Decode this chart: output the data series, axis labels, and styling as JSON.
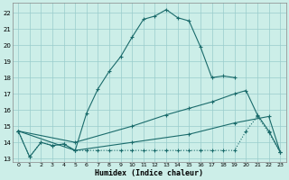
{
  "xlabel": "Humidex (Indice chaleur)",
  "bg_color": "#cceee8",
  "grid_color": "#99cccc",
  "line_color": "#1a6b6b",
  "xlim": [
    -0.5,
    23.5
  ],
  "ylim": [
    12.8,
    22.6
  ],
  "yticks": [
    13,
    14,
    15,
    16,
    17,
    18,
    19,
    20,
    21,
    22
  ],
  "xticks": [
    0,
    1,
    2,
    3,
    4,
    5,
    6,
    7,
    8,
    9,
    10,
    11,
    12,
    13,
    14,
    15,
    16,
    17,
    18,
    19,
    20,
    21,
    22,
    23
  ],
  "line1_x": [
    0,
    1,
    2,
    3,
    4,
    5,
    6,
    7,
    8,
    9,
    10,
    11,
    12,
    13,
    14,
    15,
    16,
    17,
    18,
    19
  ],
  "line1_y": [
    14.7,
    13.1,
    14.0,
    13.8,
    13.9,
    13.5,
    15.8,
    17.3,
    18.4,
    19.3,
    20.5,
    21.6,
    21.8,
    22.2,
    21.7,
    21.5,
    19.9,
    18.0,
    18.1,
    18.0
  ],
  "line2_x": [
    0,
    1,
    2,
    3,
    4,
    5,
    6,
    7,
    8,
    9,
    10,
    11,
    12,
    13,
    14,
    15,
    16,
    17,
    18,
    19,
    20,
    21,
    22,
    23
  ],
  "line2_y": [
    14.7,
    13.1,
    14.0,
    13.8,
    13.9,
    13.5,
    13.5,
    13.5,
    13.5,
    13.5,
    13.5,
    13.5,
    13.5,
    13.5,
    13.5,
    13.5,
    13.5,
    13.5,
    13.5,
    13.5,
    14.7,
    15.6,
    14.6,
    13.4
  ],
  "line3_x": [
    0,
    5,
    10,
    13,
    15,
    17,
    19,
    20,
    21,
    22,
    23
  ],
  "line3_y": [
    14.7,
    14.0,
    15.0,
    15.7,
    16.1,
    16.5,
    17.0,
    17.2,
    15.7,
    14.7,
    13.4
  ],
  "line4_x": [
    0,
    5,
    10,
    15,
    19,
    22,
    23
  ],
  "line4_y": [
    14.7,
    13.5,
    14.0,
    14.5,
    15.2,
    15.6,
    13.4
  ]
}
